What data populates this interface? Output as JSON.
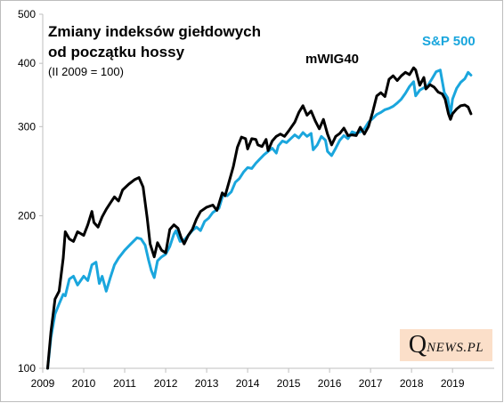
{
  "chart_data": {
    "type": "line",
    "title": "Zmiany indeksów giełdowych od początku hossy",
    "subtitle": "(II 2009 = 100)",
    "y_scale": "log",
    "ylim": [
      100,
      500
    ],
    "y_ticks": [
      100,
      200,
      300,
      400,
      500
    ],
    "x_ticks": [
      2009,
      2010,
      2011,
      2012,
      2013,
      2014,
      2015,
      2016,
      2017,
      2018,
      2019
    ],
    "xlim": [
      2009.0,
      2019.8
    ],
    "grid": false,
    "legend": "inline labels",
    "series": [
      {
        "name": "mWIG40",
        "color": "#000000",
        "points": [
          [
            2009.12,
            100
          ],
          [
            2009.2,
            118
          ],
          [
            2009.3,
            137
          ],
          [
            2009.4,
            142
          ],
          [
            2009.5,
            165
          ],
          [
            2009.55,
            186
          ],
          [
            2009.65,
            180
          ],
          [
            2009.75,
            178
          ],
          [
            2009.85,
            186
          ],
          [
            2010.0,
            183
          ],
          [
            2010.1,
            192
          ],
          [
            2010.2,
            204
          ],
          [
            2010.25,
            194
          ],
          [
            2010.35,
            190
          ],
          [
            2010.45,
            199
          ],
          [
            2010.55,
            206
          ],
          [
            2010.65,
            212
          ],
          [
            2010.75,
            218
          ],
          [
            2010.85,
            214
          ],
          [
            2010.95,
            225
          ],
          [
            2011.1,
            231
          ],
          [
            2011.25,
            236
          ],
          [
            2011.35,
            238
          ],
          [
            2011.45,
            228
          ],
          [
            2011.55,
            198
          ],
          [
            2011.62,
            176
          ],
          [
            2011.72,
            166
          ],
          [
            2011.8,
            177
          ],
          [
            2011.9,
            171
          ],
          [
            2012.0,
            169
          ],
          [
            2012.1,
            188
          ],
          [
            2012.2,
            192
          ],
          [
            2012.3,
            189
          ],
          [
            2012.38,
            181
          ],
          [
            2012.45,
            176
          ],
          [
            2012.55,
            183
          ],
          [
            2012.65,
            188
          ],
          [
            2012.75,
            197
          ],
          [
            2012.85,
            204
          ],
          [
            2013.0,
            208
          ],
          [
            2013.15,
            210
          ],
          [
            2013.25,
            205
          ],
          [
            2013.38,
            222
          ],
          [
            2013.45,
            219
          ],
          [
            2013.55,
            234
          ],
          [
            2013.65,
            250
          ],
          [
            2013.75,
            273
          ],
          [
            2013.85,
            286
          ],
          [
            2013.95,
            284
          ],
          [
            2014.0,
            271
          ],
          [
            2014.1,
            284
          ],
          [
            2014.2,
            283
          ],
          [
            2014.25,
            276
          ],
          [
            2014.35,
            274
          ],
          [
            2014.45,
            283
          ],
          [
            2014.5,
            269
          ],
          [
            2014.6,
            281
          ],
          [
            2014.7,
            287
          ],
          [
            2014.8,
            290
          ],
          [
            2014.9,
            287
          ],
          [
            2015.0,
            294
          ],
          [
            2015.15,
            306
          ],
          [
            2015.25,
            320
          ],
          [
            2015.35,
            330
          ],
          [
            2015.45,
            316
          ],
          [
            2015.55,
            322
          ],
          [
            2015.65,
            308
          ],
          [
            2015.75,
            297
          ],
          [
            2015.85,
            310
          ],
          [
            2015.95,
            290
          ],
          [
            2016.05,
            276
          ],
          [
            2016.15,
            287
          ],
          [
            2016.25,
            291
          ],
          [
            2016.35,
            298
          ],
          [
            2016.45,
            288
          ],
          [
            2016.55,
            289
          ],
          [
            2016.65,
            288
          ],
          [
            2016.75,
            299
          ],
          [
            2016.85,
            290
          ],
          [
            2016.95,
            300
          ],
          [
            2017.05,
            320
          ],
          [
            2017.15,
            345
          ],
          [
            2017.25,
            350
          ],
          [
            2017.35,
            344
          ],
          [
            2017.45,
            372
          ],
          [
            2017.55,
            378
          ],
          [
            2017.65,
            370
          ],
          [
            2017.75,
            378
          ],
          [
            2017.85,
            384
          ],
          [
            2017.95,
            380
          ],
          [
            2018.05,
            392
          ],
          [
            2018.1,
            388
          ],
          [
            2018.2,
            362
          ],
          [
            2018.3,
            375
          ],
          [
            2018.35,
            356
          ],
          [
            2018.45,
            363
          ],
          [
            2018.55,
            359
          ],
          [
            2018.65,
            351
          ],
          [
            2018.75,
            348
          ],
          [
            2018.82,
            340
          ],
          [
            2018.9,
            318
          ],
          [
            2018.95,
            310
          ],
          [
            2019.0,
            318
          ],
          [
            2019.1,
            325
          ],
          [
            2019.2,
            330
          ],
          [
            2019.3,
            331
          ],
          [
            2019.38,
            328
          ],
          [
            2019.45,
            318
          ]
        ]
      },
      {
        "name": "S&P 500",
        "color": "#1aa6dd",
        "points": [
          [
            2009.12,
            100
          ],
          [
            2009.2,
            115
          ],
          [
            2009.3,
            128
          ],
          [
            2009.4,
            134
          ],
          [
            2009.5,
            140
          ],
          [
            2009.55,
            139
          ],
          [
            2009.65,
            150
          ],
          [
            2009.75,
            152
          ],
          [
            2009.85,
            146
          ],
          [
            2010.0,
            152
          ],
          [
            2010.1,
            149
          ],
          [
            2010.2,
            160
          ],
          [
            2010.3,
            162
          ],
          [
            2010.38,
            147
          ],
          [
            2010.45,
            152
          ],
          [
            2010.55,
            142
          ],
          [
            2010.65,
            151
          ],
          [
            2010.75,
            160
          ],
          [
            2010.85,
            165
          ],
          [
            2011.0,
            171
          ],
          [
            2011.15,
            176
          ],
          [
            2011.3,
            181
          ],
          [
            2011.4,
            180
          ],
          [
            2011.5,
            175
          ],
          [
            2011.58,
            164
          ],
          [
            2011.65,
            156
          ],
          [
            2011.72,
            151
          ],
          [
            2011.8,
            163
          ],
          [
            2011.9,
            166
          ],
          [
            2012.0,
            168
          ],
          [
            2012.1,
            174
          ],
          [
            2012.2,
            184
          ],
          [
            2012.25,
            187
          ],
          [
            2012.35,
            178
          ],
          [
            2012.45,
            179
          ],
          [
            2012.55,
            183
          ],
          [
            2012.65,
            187
          ],
          [
            2012.75,
            190
          ],
          [
            2012.85,
            187
          ],
          [
            2012.95,
            195
          ],
          [
            2013.05,
            198
          ],
          [
            2013.15,
            203
          ],
          [
            2013.3,
            207
          ],
          [
            2013.4,
            220
          ],
          [
            2013.5,
            219
          ],
          [
            2013.6,
            223
          ],
          [
            2013.7,
            233
          ],
          [
            2013.8,
            237
          ],
          [
            2013.9,
            244
          ],
          [
            2014.0,
            249
          ],
          [
            2014.1,
            248
          ],
          [
            2014.2,
            254
          ],
          [
            2014.3,
            259
          ],
          [
            2014.4,
            264
          ],
          [
            2014.5,
            268
          ],
          [
            2014.6,
            272
          ],
          [
            2014.7,
            266
          ],
          [
            2014.75,
            275
          ],
          [
            2014.85,
            281
          ],
          [
            2014.95,
            279
          ],
          [
            2015.05,
            284
          ],
          [
            2015.15,
            289
          ],
          [
            2015.25,
            285
          ],
          [
            2015.35,
            292
          ],
          [
            2015.45,
            287
          ],
          [
            2015.55,
            291
          ],
          [
            2015.6,
            270
          ],
          [
            2015.7,
            276
          ],
          [
            2015.8,
            287
          ],
          [
            2015.9,
            282
          ],
          [
            2015.95,
            268
          ],
          [
            2016.05,
            263
          ],
          [
            2016.15,
            272
          ],
          [
            2016.25,
            282
          ],
          [
            2016.35,
            288
          ],
          [
            2016.45,
            284
          ],
          [
            2016.55,
            293
          ],
          [
            2016.65,
            291
          ],
          [
            2016.75,
            293
          ],
          [
            2016.85,
            297
          ],
          [
            2016.95,
            306
          ],
          [
            2017.05,
            311
          ],
          [
            2017.15,
            317
          ],
          [
            2017.25,
            320
          ],
          [
            2017.35,
            324
          ],
          [
            2017.45,
            326
          ],
          [
            2017.55,
            329
          ],
          [
            2017.65,
            334
          ],
          [
            2017.75,
            340
          ],
          [
            2017.85,
            349
          ],
          [
            2017.95,
            360
          ],
          [
            2018.05,
            368
          ],
          [
            2018.1,
            345
          ],
          [
            2018.2,
            354
          ],
          [
            2018.3,
            358
          ],
          [
            2018.4,
            362
          ],
          [
            2018.5,
            373
          ],
          [
            2018.6,
            385
          ],
          [
            2018.7,
            388
          ],
          [
            2018.8,
            350
          ],
          [
            2018.88,
            342
          ],
          [
            2018.95,
            316
          ],
          [
            2019.0,
            340
          ],
          [
            2019.1,
            357
          ],
          [
            2019.2,
            367
          ],
          [
            2019.3,
            373
          ],
          [
            2019.38,
            384
          ],
          [
            2019.45,
            379
          ]
        ]
      }
    ]
  },
  "logo": {
    "big": "Q",
    "small": "NEWS.PL"
  }
}
